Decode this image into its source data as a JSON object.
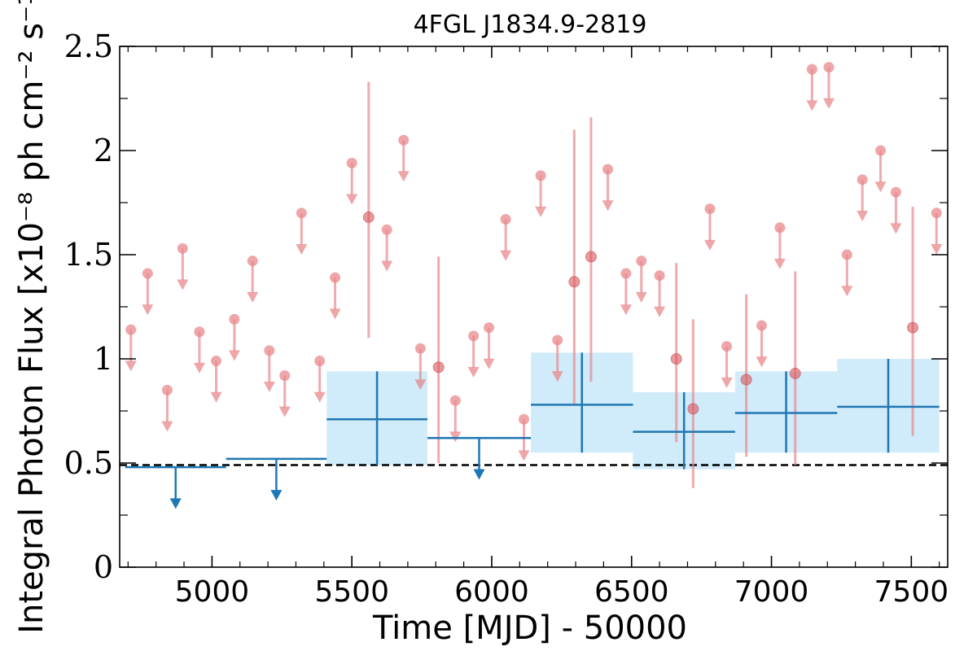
{
  "chart_data": {
    "type": "scatter",
    "title": "4FGL J1834.9-2819",
    "xlabel": "Time [MJD] - 50000",
    "ylabel": "Integral Photon Flux [x10⁻⁸ ph cm⁻² s⁻¹]",
    "xlim": [
      4670,
      7630
    ],
    "ylim": [
      0,
      2.5
    ],
    "x_ticks": [
      5000,
      5500,
      6000,
      6500,
      7000,
      7500
    ],
    "x_tick_labels": [
      "5000",
      "5500",
      "6000",
      "6500",
      "7000",
      "7500"
    ],
    "y_ticks": [
      0,
      0.5,
      1,
      1.5,
      2,
      2.5
    ],
    "y_tick_labels": [
      "0",
      "0.5",
      "1",
      "1.5",
      "2",
      "2.5"
    ],
    "grid": false,
    "reference_line": {
      "y": 0.49,
      "style": "dashed",
      "color": "#000000"
    },
    "colors": {
      "short_bins": "#e8888c",
      "long_bins": "#1f77b4",
      "band": "#cdeaf9"
    },
    "short_bin_upper_limits": [
      {
        "x": 4710,
        "y": 1.14
      },
      {
        "x": 4770,
        "y": 1.41
      },
      {
        "x": 4840,
        "y": 0.85
      },
      {
        "x": 4895,
        "y": 1.53
      },
      {
        "x": 4955,
        "y": 1.13
      },
      {
        "x": 5015,
        "y": 0.99
      },
      {
        "x": 5080,
        "y": 1.19
      },
      {
        "x": 5145,
        "y": 1.47
      },
      {
        "x": 5205,
        "y": 1.04
      },
      {
        "x": 5260,
        "y": 0.92
      },
      {
        "x": 5320,
        "y": 1.7
      },
      {
        "x": 5385,
        "y": 0.99
      },
      {
        "x": 5440,
        "y": 1.39
      },
      {
        "x": 5500,
        "y": 1.94
      },
      {
        "x": 5625,
        "y": 1.62
      },
      {
        "x": 5685,
        "y": 2.05
      },
      {
        "x": 5745,
        "y": 1.05
      },
      {
        "x": 5870,
        "y": 0.8
      },
      {
        "x": 5935,
        "y": 1.11
      },
      {
        "x": 5990,
        "y": 1.15
      },
      {
        "x": 6050,
        "y": 1.67
      },
      {
        "x": 6115,
        "y": 0.71
      },
      {
        "x": 6175,
        "y": 1.88
      },
      {
        "x": 6235,
        "y": 1.09
      },
      {
        "x": 6415,
        "y": 1.91
      },
      {
        "x": 6480,
        "y": 1.41
      },
      {
        "x": 6535,
        "y": 1.47
      },
      {
        "x": 6600,
        "y": 1.4
      },
      {
        "x": 6780,
        "y": 1.72
      },
      {
        "x": 6840,
        "y": 1.06
      },
      {
        "x": 6965,
        "y": 1.16
      },
      {
        "x": 7030,
        "y": 1.63
      },
      {
        "x": 7145,
        "y": 2.39
      },
      {
        "x": 7205,
        "y": 2.4
      },
      {
        "x": 7270,
        "y": 1.5
      },
      {
        "x": 7325,
        "y": 1.86
      },
      {
        "x": 7390,
        "y": 2.0
      },
      {
        "x": 7445,
        "y": 1.8
      },
      {
        "x": 7590,
        "y": 1.7
      }
    ],
    "short_bin_detections": [
      {
        "x": 5560,
        "y": 1.68,
        "ylo": 1.1,
        "yhi": 2.33
      },
      {
        "x": 5810,
        "y": 0.96,
        "ylo": 0.5,
        "yhi": 1.49
      },
      {
        "x": 6295,
        "y": 1.37,
        "ylo": 0.78,
        "yhi": 2.1
      },
      {
        "x": 6355,
        "y": 1.49,
        "ylo": 0.89,
        "yhi": 2.16
      },
      {
        "x": 6660,
        "y": 1.0,
        "ylo": 0.6,
        "yhi": 1.46
      },
      {
        "x": 6720,
        "y": 0.76,
        "ylo": 0.38,
        "yhi": 1.19
      },
      {
        "x": 6910,
        "y": 0.9,
        "ylo": 0.53,
        "yhi": 1.31
      },
      {
        "x": 7085,
        "y": 0.93,
        "ylo": 0.49,
        "yhi": 1.42
      },
      {
        "x": 7505,
        "y": 1.15,
        "ylo": 0.63,
        "yhi": 1.73
      }
    ],
    "long_bin_upper_limits": [
      {
        "x_start": 4690,
        "x_end": 5050,
        "y": 0.48
      },
      {
        "x_start": 5050,
        "x_end": 5410,
        "y": 0.52
      },
      {
        "x_start": 5770,
        "x_end": 6140,
        "y": 0.62
      }
    ],
    "long_bin_detections": [
      {
        "x_start": 5410,
        "x_end": 5770,
        "y": 0.71,
        "ylo": 0.49,
        "yhi": 0.94
      },
      {
        "x_start": 6140,
        "x_end": 6505,
        "y": 0.78,
        "ylo": 0.55,
        "yhi": 1.03
      },
      {
        "x_start": 6505,
        "x_end": 6870,
        "y": 0.65,
        "ylo": 0.47,
        "yhi": 0.84
      },
      {
        "x_start": 6870,
        "x_end": 7235,
        "y": 0.74,
        "ylo": 0.55,
        "yhi": 0.94
      },
      {
        "x_start": 7235,
        "x_end": 7600,
        "y": 0.77,
        "ylo": 0.55,
        "yhi": 1.0
      }
    ]
  }
}
